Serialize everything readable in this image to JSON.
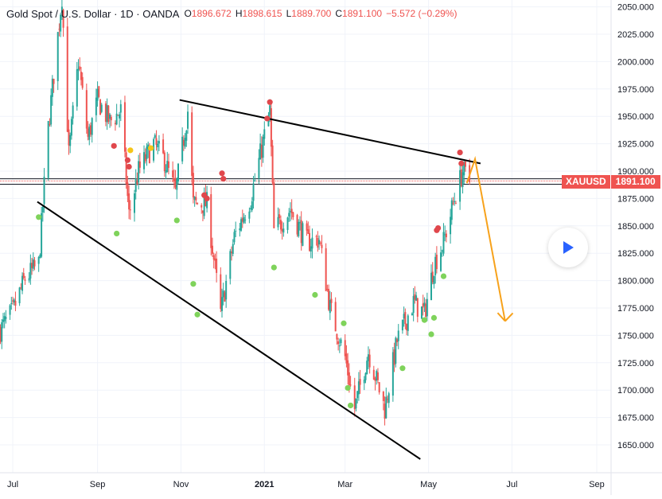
{
  "legend": {
    "symbol": "Gold Spot / U.S. Dollar · 1D · OANDA",
    "open_label": "O",
    "open": "1896.672",
    "high_label": "H",
    "high": "1898.615",
    "low_label": "L",
    "low": "1889.700",
    "close_label": "C",
    "close": "1891.100",
    "change": "−5.572 (−0.29%)"
  },
  "price_tag": {
    "symbol": "XAUUSD",
    "value": "1891.100"
  },
  "colors": {
    "up": "#26a69a",
    "down": "#ef5350",
    "grid": "#f0f3fa",
    "trendline": "#000000",
    "projection": "#f7a21b",
    "marker_red": "#e0474c",
    "marker_green": "#7fd35b",
    "marker_yellow": "#f5c518"
  },
  "chart_data": {
    "type": "candlestick",
    "instrument": "XAUUSD",
    "timeframe": "1D",
    "x_axis": {
      "range_months": [
        "2020-06-20",
        "2021-09-20"
      ],
      "ticks": [
        {
          "date": "2020-07-01",
          "label": "Jul"
        },
        {
          "date": "2020-09-01",
          "label": "Sep"
        },
        {
          "date": "2020-11-01",
          "label": "Nov"
        },
        {
          "date": "2021-01-01",
          "label": "2021"
        },
        {
          "date": "2021-03-01",
          "label": "Mar"
        },
        {
          "date": "2021-05-01",
          "label": "May"
        },
        {
          "date": "2021-07-01",
          "label": "Jul"
        },
        {
          "date": "2021-09-01",
          "label": "Sep"
        }
      ]
    },
    "y_axis": {
      "range": [
        1628,
        2057
      ],
      "ticks": [
        "1650.000",
        "1675.000",
        "1700.000",
        "1725.000",
        "1750.000",
        "1775.000",
        "1800.000",
        "1825.000",
        "1850.000",
        "1875.000",
        "1900.000",
        "1925.000",
        "1950.000",
        "1975.000",
        "2000.000",
        "2025.000",
        "2050.000"
      ]
    },
    "price_path": [
      [
        "2020-06-22",
        1755
      ],
      [
        "2020-07-01",
        1772
      ],
      [
        "2020-07-10",
        1802
      ],
      [
        "2020-07-20",
        1815
      ],
      [
        "2020-07-27",
        1940
      ],
      [
        "2020-08-06",
        2060
      ],
      [
        "2020-08-11",
        1915
      ],
      [
        "2020-08-18",
        2000
      ],
      [
        "2020-08-25",
        1930
      ],
      [
        "2020-09-01",
        1965
      ],
      [
        "2020-09-10",
        1945
      ],
      [
        "2020-09-18",
        1955
      ],
      [
        "2020-09-24",
        1860
      ],
      [
        "2020-10-01",
        1900
      ],
      [
        "2020-10-12",
        1925
      ],
      [
        "2020-10-20",
        1910
      ],
      [
        "2020-10-28",
        1880
      ],
      [
        "2020-11-06",
        1955
      ],
      [
        "2020-11-10",
        1870
      ],
      [
        "2020-11-20",
        1870
      ],
      [
        "2020-11-30",
        1770
      ],
      [
        "2020-12-10",
        1840
      ],
      [
        "2020-12-22",
        1875
      ],
      [
        "2021-01-05",
        1955
      ],
      [
        "2021-01-08",
        1845
      ],
      [
        "2021-01-20",
        1865
      ],
      [
        "2021-02-01",
        1835
      ],
      [
        "2021-02-10",
        1838
      ],
      [
        "2021-02-18",
        1775
      ],
      [
        "2021-03-01",
        1730
      ],
      [
        "2021-03-08",
        1683
      ],
      [
        "2021-03-18",
        1735
      ],
      [
        "2021-03-30",
        1683
      ],
      [
        "2021-04-08",
        1745
      ],
      [
        "2021-04-20",
        1780
      ],
      [
        "2021-04-28",
        1770
      ],
      [
        "2021-05-05",
        1815
      ],
      [
        "2021-05-12",
        1835
      ],
      [
        "2021-05-20",
        1875
      ],
      [
        "2021-05-26",
        1900
      ],
      [
        "2021-05-31",
        1891
      ]
    ],
    "trendlines": [
      {
        "from": [
          "2020-10-31",
          1965
        ],
        "to": [
          "2021-06-08",
          1907
        ]
      },
      {
        "from": [
          "2020-07-19",
          1872
        ],
        "to": [
          "2021-04-25",
          1637
        ]
      }
    ],
    "horizontal_lines": [
      1893,
      1891,
      1888
    ],
    "projection": [
      [
        "2021-05-29",
        1889
      ],
      [
        "2021-06-04",
        1911
      ],
      [
        "2021-06-26",
        1763
      ]
    ],
    "markers": [
      {
        "date": "2020-07-20",
        "price": 1858,
        "color": "green"
      },
      {
        "date": "2020-09-13",
        "price": 1923,
        "color": "red"
      },
      {
        "date": "2020-09-15",
        "price": 1843,
        "color": "green"
      },
      {
        "date": "2020-09-23",
        "price": 1910,
        "color": "red"
      },
      {
        "date": "2020-09-24",
        "price": 1904,
        "color": "red"
      },
      {
        "date": "2020-09-25",
        "price": 1919,
        "color": "yellow"
      },
      {
        "date": "2020-10-10",
        "price": 1921,
        "color": "yellow"
      },
      {
        "date": "2020-10-29",
        "price": 1855,
        "color": "green"
      },
      {
        "date": "2020-11-10",
        "price": 1797,
        "color": "green"
      },
      {
        "date": "2020-11-13",
        "price": 1769,
        "color": "green"
      },
      {
        "date": "2020-11-18",
        "price": 1878,
        "color": "red"
      },
      {
        "date": "2020-11-20",
        "price": 1875,
        "color": "red"
      },
      {
        "date": "2020-12-01",
        "price": 1898,
        "color": "red"
      },
      {
        "date": "2020-12-02",
        "price": 1893,
        "color": "red"
      },
      {
        "date": "2021-01-03",
        "price": 1948,
        "color": "red"
      },
      {
        "date": "2021-01-05",
        "price": 1963,
        "color": "red"
      },
      {
        "date": "2021-01-08",
        "price": 1812,
        "color": "green"
      },
      {
        "date": "2021-02-07",
        "price": 1787,
        "color": "green"
      },
      {
        "date": "2021-02-28",
        "price": 1761,
        "color": "green"
      },
      {
        "date": "2021-03-03",
        "price": 1702,
        "color": "green"
      },
      {
        "date": "2021-03-05",
        "price": 1686,
        "color": "green"
      },
      {
        "date": "2021-04-12",
        "price": 1720,
        "color": "green"
      },
      {
        "date": "2021-04-28",
        "price": 1764,
        "color": "green"
      },
      {
        "date": "2021-05-03",
        "price": 1751,
        "color": "green"
      },
      {
        "date": "2021-05-05",
        "price": 1766,
        "color": "green"
      },
      {
        "date": "2021-05-07",
        "price": 1846,
        "color": "red"
      },
      {
        "date": "2021-05-08",
        "price": 1848,
        "color": "red"
      },
      {
        "date": "2021-05-12",
        "price": 1804,
        "color": "green"
      },
      {
        "date": "2021-05-24",
        "price": 1917,
        "color": "red"
      },
      {
        "date": "2021-05-25",
        "price": 1907,
        "color": "red"
      }
    ]
  }
}
